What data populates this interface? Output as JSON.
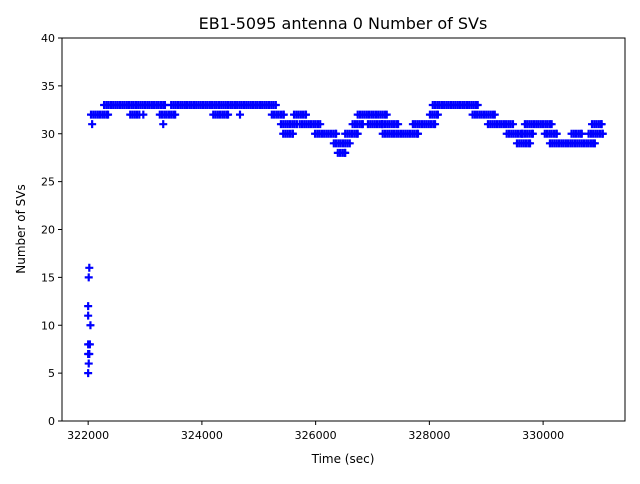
{
  "chart_data": {
    "type": "scatter",
    "title": "EB1-5095 antenna 0 Number of SVs",
    "xlabel": "Time (sec)",
    "ylabel": "Number of SVs",
    "xlim": [
      321540,
      331440
    ],
    "ylim": [
      0,
      40
    ],
    "xticks": [
      322000,
      324000,
      326000,
      328000,
      330000
    ],
    "yticks": [
      0,
      5,
      10,
      15,
      20,
      25,
      30,
      35,
      40
    ],
    "grid": false,
    "marker": "+",
    "color": "#0000ff",
    "series": [
      {
        "name": "Number of SVs",
        "points": [
          [
            322000,
            5
          ],
          [
            322010,
            6
          ],
          [
            322000,
            7
          ],
          [
            322020,
            7
          ],
          [
            322000,
            8
          ],
          [
            322030,
            8
          ],
          [
            322040,
            10
          ],
          [
            322000,
            11
          ],
          [
            322000,
            12
          ],
          [
            322010,
            15
          ],
          [
            322020,
            16
          ],
          [
            322070,
            31
          ]
        ],
        "runs": [
          [
            322050,
            322350,
            32
          ],
          [
            322280,
            323350,
            33
          ],
          [
            322740,
            322900,
            32
          ],
          [
            322970,
            322970,
            32
          ],
          [
            323260,
            323530,
            32
          ],
          [
            323320,
            323320,
            31
          ],
          [
            323460,
            325300,
            33
          ],
          [
            324200,
            324460,
            32
          ],
          [
            324670,
            324670,
            32
          ],
          [
            325230,
            325440,
            32
          ],
          [
            325390,
            325670,
            31
          ],
          [
            325430,
            325600,
            30
          ],
          [
            325620,
            325830,
            32
          ],
          [
            325720,
            326080,
            31
          ],
          [
            325990,
            326360,
            30
          ],
          [
            326320,
            326600,
            29
          ],
          [
            326390,
            326520,
            28
          ],
          [
            326520,
            326740,
            30
          ],
          [
            326650,
            326830,
            31
          ],
          [
            326740,
            327250,
            32
          ],
          [
            326920,
            327170,
            31
          ],
          [
            327180,
            327450,
            31
          ],
          [
            327180,
            327800,
            30
          ],
          [
            327710,
            328100,
            31
          ],
          [
            328010,
            328150,
            32
          ],
          [
            328060,
            328850,
            33
          ],
          [
            328760,
            329150,
            32
          ],
          [
            329030,
            329470,
            31
          ],
          [
            329360,
            329630,
            30
          ],
          [
            329540,
            329770,
            29
          ],
          [
            329640,
            329820,
            30
          ],
          [
            329680,
            330150,
            31
          ],
          [
            330030,
            330240,
            30
          ],
          [
            330120,
            330910,
            29
          ],
          [
            330500,
            330680,
            30
          ],
          [
            330800,
            331050,
            30
          ],
          [
            330860,
            331030,
            31
          ]
        ]
      }
    ]
  }
}
